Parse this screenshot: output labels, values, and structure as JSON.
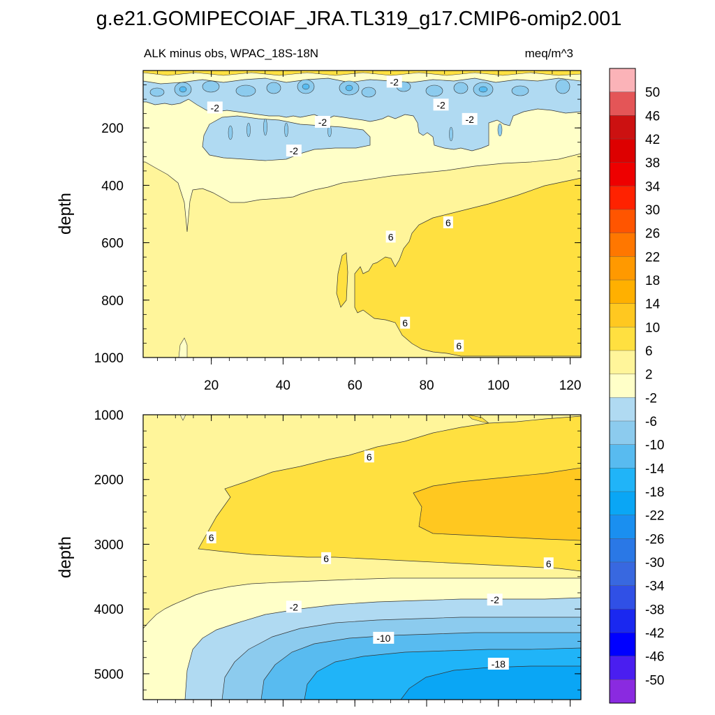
{
  "chart_data": {
    "type": "heatmap",
    "title": "g.e21.GOMIPECOIAF_JRA.TL319_g17.CMIP6-omip2.001",
    "subtitle_left": "ALK minus obs, WPAC_18S-18N",
    "subtitle_right": "meq/m^3",
    "colorbar": {
      "labels": [
        "50",
        "46",
        "42",
        "38",
        "34",
        "30",
        "26",
        "22",
        "18",
        "14",
        "10",
        "6",
        "2",
        "-2",
        "-6",
        "-10",
        "-14",
        "-18",
        "-22",
        "-26",
        "-30",
        "-34",
        "-38",
        "-42",
        "-46",
        "-50"
      ],
      "colors": [
        "#fbb3b8",
        "#e45557",
        "#cc1111",
        "#dd0000",
        "#ee0000",
        "#ff2200",
        "#ff5500",
        "#ff7700",
        "#ff9900",
        "#ffb000",
        "#ffc820",
        "#ffe040",
        "#fff59a",
        "#ffffc8",
        "#b0daf2",
        "#8ccbee",
        "#58bbf0",
        "#20b4f8",
        "#0aa6f5",
        "#1a8ff0",
        "#2a78e6",
        "#3868e0",
        "#3050e6",
        "#1a28f0",
        "#0000ff",
        "#4a1ef0",
        "#8a2ae0"
      ]
    },
    "panels": [
      {
        "name": "upper",
        "ylabel": "depth",
        "ylim": [
          0,
          1000
        ],
        "yticks": [
          "200",
          "400",
          "600",
          "800",
          "1000"
        ],
        "xlim": [
          1,
          123
        ],
        "xticks": [
          "20",
          "40",
          "60",
          "80",
          "100",
          "120"
        ],
        "contour_labels": [
          {
            "text": "-2",
            "x": 21,
            "depth": 130
          },
          {
            "text": "-2",
            "x": 51,
            "depth": 180
          },
          {
            "text": "-2",
            "x": 71,
            "depth": 40
          },
          {
            "text": "-2",
            "x": 84,
            "depth": 120
          },
          {
            "text": "-2",
            "x": 92,
            "depth": 170
          },
          {
            "text": "-2",
            "x": 43,
            "depth": 280
          },
          {
            "text": "6",
            "x": 70,
            "depth": 580
          },
          {
            "text": "6",
            "x": 86,
            "depth": 530
          },
          {
            "text": "6",
            "x": 74,
            "depth": 880
          },
          {
            "text": "6",
            "x": 89,
            "depth": 960
          }
        ]
      },
      {
        "name": "lower",
        "ylabel": "depth",
        "ylim": [
          1000,
          5400
        ],
        "yticks": [
          "1000",
          "2000",
          "3000",
          "4000",
          "5000"
        ],
        "xlim": [
          1,
          123
        ],
        "contour_labels": [
          {
            "text": "6",
            "x": 64,
            "depth": 1650
          },
          {
            "text": "6",
            "x": 20,
            "depth": 2900
          },
          {
            "text": "6",
            "x": 52,
            "depth": 3220
          },
          {
            "text": "6",
            "x": 114,
            "depth": 3300
          },
          {
            "text": "-2",
            "x": 43,
            "depth": 3970
          },
          {
            "text": "-2",
            "x": 99,
            "depth": 3860
          },
          {
            "text": "-10",
            "x": 68,
            "depth": 4450
          },
          {
            "text": "-18",
            "x": 100,
            "depth": 4850
          }
        ]
      }
    ]
  }
}
